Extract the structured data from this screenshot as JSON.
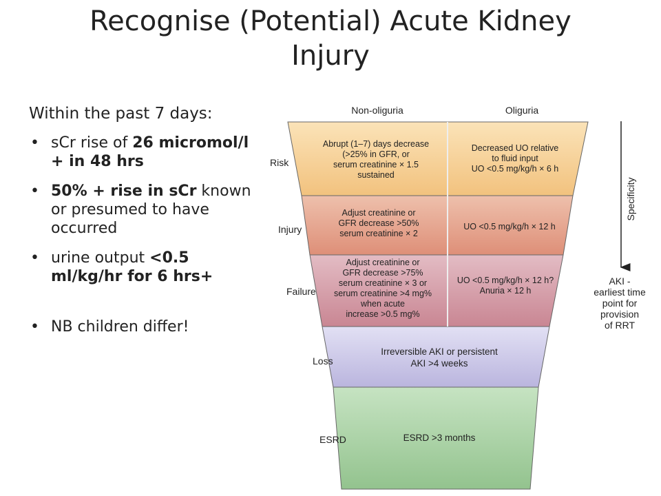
{
  "title": {
    "line1": "Recognise (Potential) Acute Kidney",
    "line2": "Injury"
  },
  "intro": "Within the past 7 days:",
  "bullets": [
    {
      "a": "sCr rise of ",
      "b": "26 micromol/l + in 48 hrs",
      "c": ""
    },
    {
      "a": "",
      "b": "50% + rise in sCr",
      "c": " known or presumed to have occurred"
    },
    {
      "a": "urine output ",
      "b": "<0.5 ml/kg/hr for 6 hrs+",
      "c": ""
    },
    {
      "a": "NB children differ!",
      "b": "",
      "c": ""
    }
  ],
  "diagram": {
    "columns": {
      "left": "Non-oliguria",
      "right": "Oliguria"
    },
    "rows": [
      {
        "label": "Risk",
        "left": [
          "Abrupt (1–7) days decrease",
          "(>25% in GFR, or",
          "serum creatinine × 1.5",
          "sustained"
        ],
        "right": [
          "Decreased UO relative",
          "to fluid input",
          "UO <0.5 mg/kg/h × 6 h"
        ],
        "color": "#f6d39a"
      },
      {
        "label": "Injury",
        "left": [
          "Adjust creatinine or",
          "GFR decrease >50%",
          "serum creatinine × 2"
        ],
        "right": [
          "UO <0.5 mg/kg/h × 12 h"
        ],
        "color": "#e6a08c"
      },
      {
        "label": "Failure",
        "left": [
          "Adjust creatinine or",
          "GFR decrease >75%",
          "serum creatinine × 3 or",
          "serum creatinine >4 mg%",
          "when acute",
          "increase >0.5 mg%"
        ],
        "right": [
          "UO <0.5 mg/kg/h × 12 h?",
          "Anuria × 12 h"
        ],
        "color": "#d49aa6"
      },
      {
        "label": "Loss",
        "center": [
          "Irreversible AKI or persistent",
          "AKI >4 weeks"
        ],
        "color": "#c9c6e6"
      },
      {
        "label": "ESRD",
        "center": [
          "ESRD >3 months"
        ],
        "color": "#a8d2a4"
      }
    ],
    "specificity": "Specificity",
    "aki_note": [
      "AKI -",
      "earliest time",
      "point for",
      "provision",
      "of RRT"
    ]
  }
}
